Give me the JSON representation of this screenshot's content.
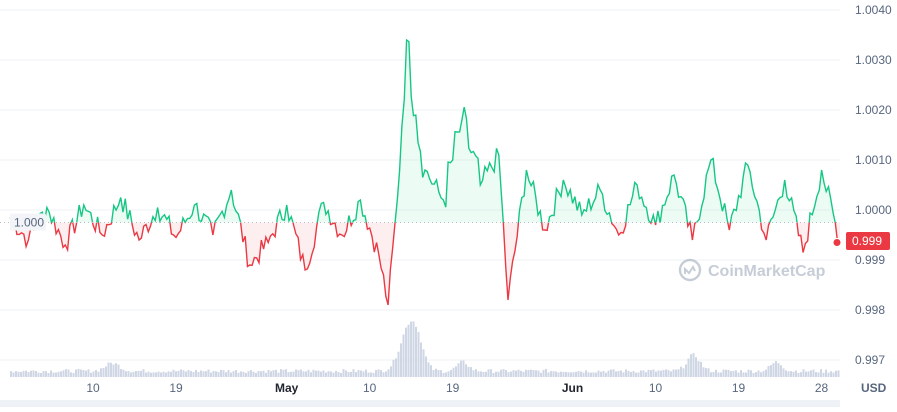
{
  "chart_data": {
    "type": "line",
    "subtype": "baseline-area-with-volume",
    "y_axis": {
      "side": "right",
      "ticks": [
        1.004,
        1.003,
        1.002,
        1.001,
        1.0,
        0.999,
        0.998,
        0.997
      ],
      "tick_labels": [
        "1.0040",
        "1.0030",
        "1.0020",
        "1.0010",
        "1.0000",
        "0.999",
        "0.998",
        "0.997"
      ],
      "ylim": [
        0.9966,
        1.0042
      ]
    },
    "x_axis": {
      "tick_labels": [
        "10",
        "19",
        "May",
        "10",
        "19",
        "Jun",
        "10",
        "19",
        "28"
      ],
      "start": "2021-04-01",
      "end": "2021-06-30"
    },
    "grid": "horizontal",
    "baseline": {
      "value": 0.99975,
      "label": "1.000"
    },
    "current_price": {
      "label": "0.999",
      "value": 0.99935
    },
    "currency": "USD",
    "watermark": "CoinMarketCap",
    "colors": {
      "above": "#16c784",
      "below": "#ea3943",
      "volume": "#cfd6e4",
      "grid": "#eff2f5",
      "axis_text": "#58667e",
      "baseline_tag": "#f2f4f7",
      "price_tag": "#ea3943"
    },
    "price_series_keypoints": [
      [
        "2021-04-01",
        0.99985
      ],
      [
        "2021-04-03",
        0.9994
      ],
      [
        "2021-04-05",
        1.00005
      ],
      [
        "2021-04-07",
        0.9993
      ],
      [
        "2021-04-09",
        1.0001
      ],
      [
        "2021-04-11",
        0.9995
      ],
      [
        "2021-04-13",
        1.00025
      ],
      [
        "2021-04-15",
        0.9994
      ],
      [
        "2021-04-17",
        1.00005
      ],
      [
        "2021-04-19",
        0.99945
      ],
      [
        "2021-04-21",
        1.0001
      ],
      [
        "2021-04-23",
        0.9995
      ],
      [
        "2021-04-25",
        1.0004
      ],
      [
        "2021-04-27",
        0.9989
      ],
      [
        "2021-04-29",
        0.99935
      ],
      [
        "2021-05-01",
        1.0001
      ],
      [
        "2021-05-03",
        0.9988
      ],
      [
        "2021-05-05",
        1.00015
      ],
      [
        "2021-05-07",
        0.9995
      ],
      [
        "2021-05-09",
        1.0002
      ],
      [
        "2021-05-11",
        0.9991
      ],
      [
        "2021-05-12",
        0.9981
      ],
      [
        "2021-05-13",
        1.0002
      ],
      [
        "2021-05-14",
        1.0034
      ],
      [
        "2021-05-15",
        1.0019
      ],
      [
        "2021-05-16",
        1.0008
      ],
      [
        "2021-05-18",
        1.0002
      ],
      [
        "2021-05-20",
        1.0018
      ],
      [
        "2021-05-22",
        1.0005
      ],
      [
        "2021-05-24",
        1.0011
      ],
      [
        "2021-05-25",
        0.9982
      ],
      [
        "2021-05-27",
        1.0008
      ],
      [
        "2021-05-29",
        0.9996
      ],
      [
        "2021-05-31",
        1.0006
      ],
      [
        "2021-06-02",
        0.9999
      ],
      [
        "2021-06-04",
        1.0004
      ],
      [
        "2021-06-06",
        0.9995
      ],
      [
        "2021-06-08",
        1.0005
      ],
      [
        "2021-06-10",
        0.9997
      ],
      [
        "2021-06-12",
        1.0007
      ],
      [
        "2021-06-14",
        0.9994
      ],
      [
        "2021-06-16",
        1.001
      ],
      [
        "2021-06-18",
        0.9996
      ],
      [
        "2021-06-20",
        1.0009
      ],
      [
        "2021-06-22",
        0.9994
      ],
      [
        "2021-06-24",
        1.0006
      ],
      [
        "2021-06-26",
        0.99915
      ],
      [
        "2021-06-28",
        1.0008
      ],
      [
        "2021-06-30",
        0.99935
      ]
    ]
  }
}
